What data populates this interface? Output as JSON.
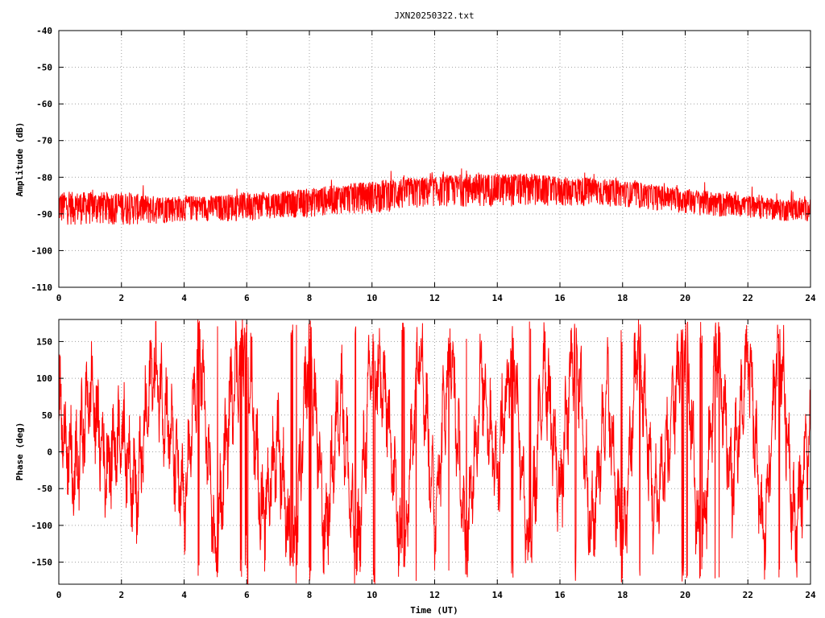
{
  "title": "JXN20250322.txt",
  "colors": {
    "series": "#ff0000",
    "frame": "#000000",
    "grid": "#a0a0a0",
    "background": "#ffffff"
  },
  "chart_data": [
    {
      "type": "line",
      "xlabel": "",
      "ylabel": "Amplitude (dB)",
      "xlim": [
        0,
        24
      ],
      "ylim": [
        -110,
        -40
      ],
      "xticks": [
        0,
        2,
        4,
        6,
        8,
        10,
        12,
        14,
        16,
        18,
        20,
        22,
        24
      ],
      "yticks": [
        -40,
        -50,
        -60,
        -70,
        -80,
        -90,
        -100,
        -110
      ],
      "grid": true,
      "series": [
        {
          "color": "#ff0000",
          "envelope_x": [
            0,
            1,
            2,
            3,
            4,
            5,
            6,
            7,
            8,
            9,
            10,
            11,
            12,
            13,
            14,
            15,
            16,
            17,
            18,
            19,
            20,
            21,
            22,
            23,
            24
          ],
          "envelope_upper": [
            -84,
            -84,
            -84,
            -85,
            -85,
            -85,
            -84,
            -84,
            -83,
            -82,
            -81,
            -80,
            -80,
            -79,
            -79,
            -79,
            -80,
            -80,
            -81,
            -82,
            -83,
            -84,
            -85,
            -86,
            -86
          ],
          "envelope_lower": [
            -93,
            -93,
            -93,
            -93,
            -92,
            -92,
            -92,
            -91,
            -91,
            -90,
            -90,
            -89,
            -88,
            -88,
            -88,
            -88,
            -88,
            -88,
            -88,
            -89,
            -90,
            -91,
            -91,
            -92,
            -92
          ]
        }
      ]
    },
    {
      "type": "line",
      "xlabel": "Time (UT)",
      "ylabel": "Phase (deg)",
      "xlim": [
        0,
        24
      ],
      "ylim": [
        -180,
        180
      ],
      "xticks": [
        0,
        2,
        4,
        6,
        8,
        10,
        12,
        14,
        16,
        18,
        20,
        22,
        24
      ],
      "yticks": [
        150,
        100,
        50,
        0,
        -50,
        -100,
        -150
      ],
      "grid": true,
      "series": [
        {
          "color": "#ff0000",
          "phase_wraps": true,
          "anchor_x": [
            0,
            0.5,
            1,
            1.5,
            2,
            2.5,
            3,
            3.5,
            4,
            4.5,
            5,
            5.5,
            6,
            6.5,
            7,
            7.5,
            8,
            8.5,
            9,
            9.5,
            10,
            10.5,
            11,
            11.5,
            12,
            12.5,
            13,
            13.5,
            14,
            14.5,
            15,
            15.5,
            16,
            16.5,
            17,
            17.5,
            18,
            18.5,
            19,
            19.5,
            20,
            20.5,
            21,
            21.5,
            22,
            22.5,
            23,
            23.5,
            24
          ],
          "anchor_y": [
            60,
            -40,
            90,
            -20,
            30,
            -60,
            120,
            40,
            -80,
            150,
            -150,
            80,
            170,
            -100,
            20,
            -170,
            160,
            -120,
            90,
            -160,
            140,
            60,
            -170,
            170,
            -90,
            150,
            -140,
            110,
            -30,
            160,
            -160,
            130,
            -60,
            170,
            -120,
            90,
            -150,
            160,
            -80,
            20,
            170,
            -170,
            150,
            -50,
            140,
            -130,
            170,
            -110,
            40
          ]
        }
      ]
    }
  ]
}
